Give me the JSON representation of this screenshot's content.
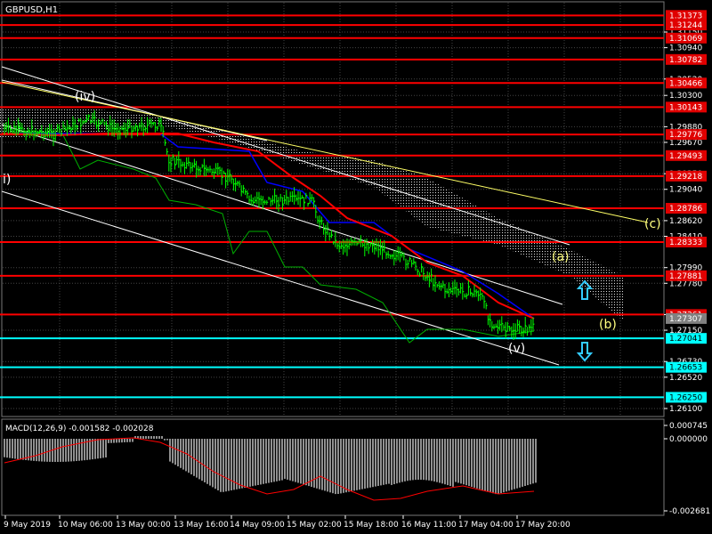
{
  "chart_data": {
    "type": "candlestick",
    "symbol": "GBPUSD,H1",
    "colors": {
      "background": "#000000",
      "grid": "#444444",
      "axis_text": "#ffffff",
      "level_red": "#ff0000",
      "level_cyan": "#00ffff",
      "label_box_red": "#e00000",
      "trend_white": "#ffffff",
      "trend_yellow": "#ffff66",
      "ma_red": "#ff0000",
      "ma_blue": "#0000ff",
      "ma_green": "#00c000",
      "price": "#00ff00",
      "wave_label": "#ffff80",
      "arrow": "#33ccff",
      "macd_hist": "#c0c0c0",
      "macd_signal": "#ff0000",
      "current_price_box": "#808080"
    },
    "price_axis_ticks": [
      "1.31150",
      "1.30940",
      "1.30520",
      "1.30300",
      "1.29880",
      "1.29670",
      "1.29250",
      "1.29040",
      "1.28620",
      "1.28410",
      "1.27990",
      "1.27780",
      "1.27360",
      "1.27150",
      "1.26730",
      "1.26520",
      "1.26100"
    ],
    "red_levels": [
      "1.31373",
      "1.31244",
      "1.31069",
      "1.30782",
      "1.30466",
      "1.30143",
      "1.29776",
      "1.29493",
      "1.29218",
      "1.28786",
      "1.28333",
      "1.27881",
      "1.27361"
    ],
    "cyan_levels": [
      "1.27041",
      "1.26653",
      "1.26250"
    ],
    "current_price": "1.27307",
    "time_labels": [
      "9 May 2019",
      "10 May 06:00",
      "13 May 00:00",
      "13 May 16:00",
      "14 May 09:00",
      "15 May 02:00",
      "15 May 18:00",
      "16 May 11:00",
      "17 May 04:00",
      "17 May 20:00"
    ],
    "wave_labels": [
      "(iv)",
      "i)",
      "(v)",
      "(a)",
      "(b)",
      "(c)"
    ],
    "macd": {
      "title": "MACD(12,26,9) -0.001582 -0.002028",
      "axis_ticks": [
        "0.000745",
        "0.000000",
        "-0.002681"
      ]
    }
  }
}
